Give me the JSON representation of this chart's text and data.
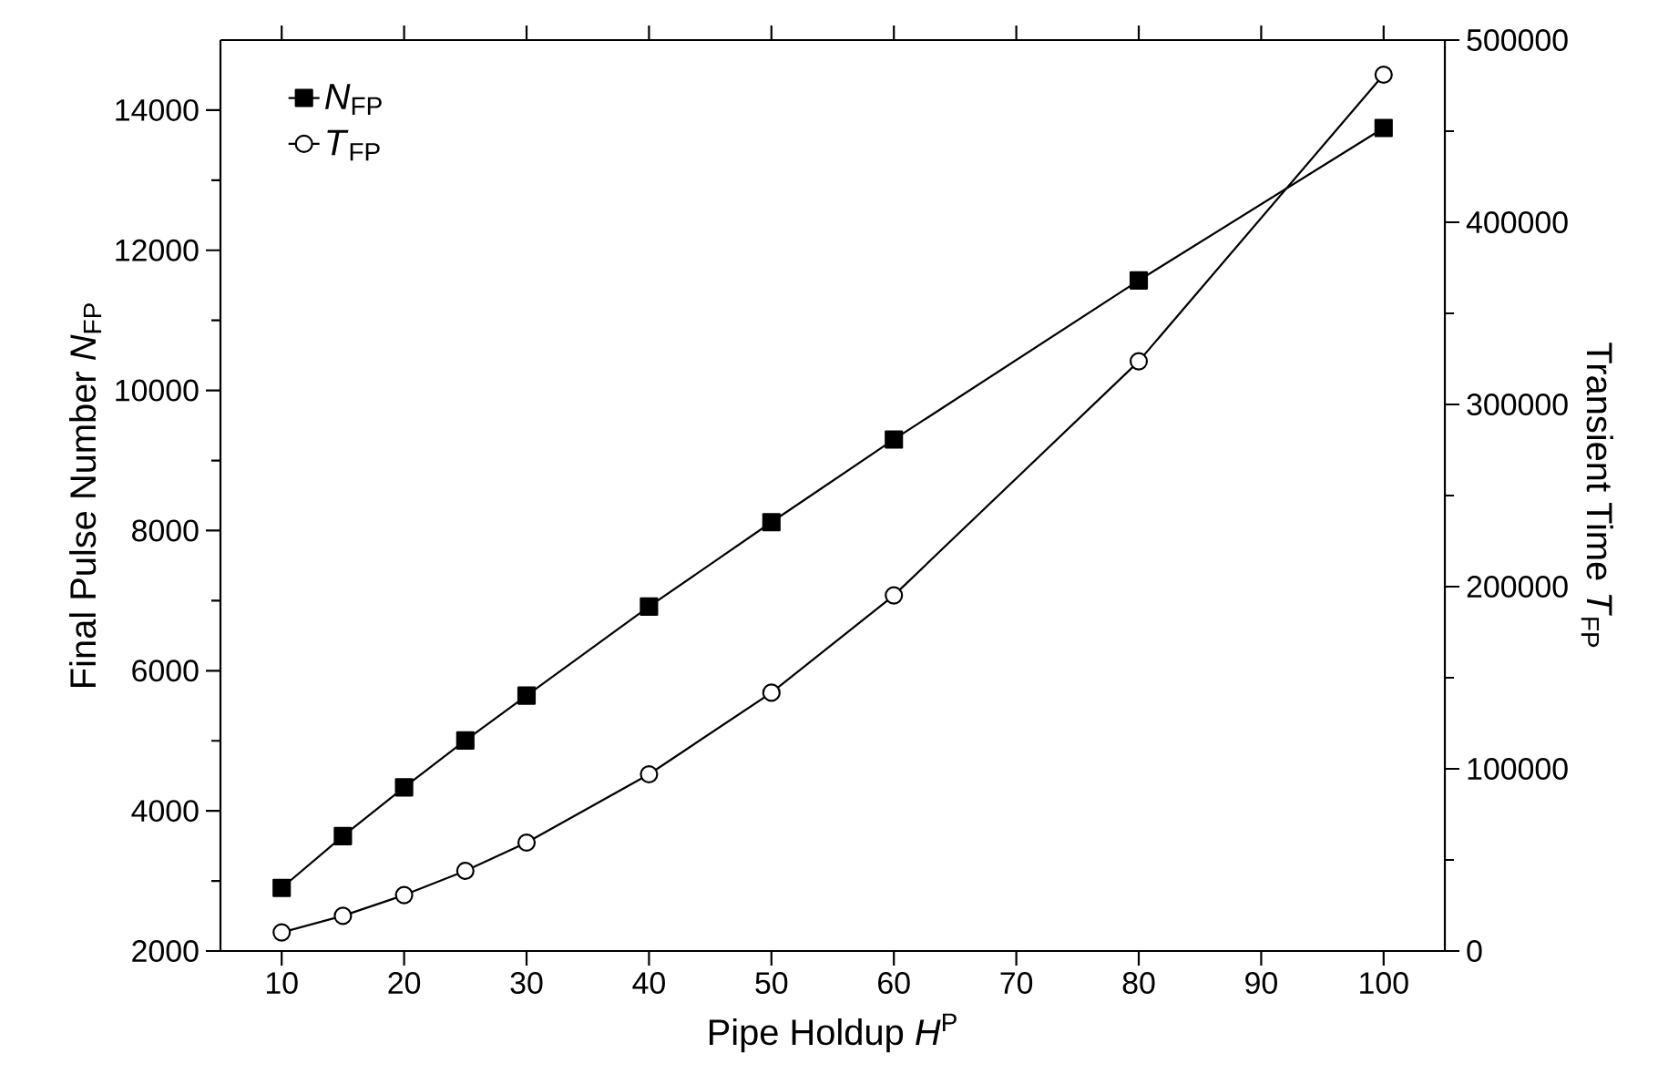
{
  "chart_data": {
    "type": "line",
    "xlabel": "Pipe Holdup *H*$^{P}$",
    "ylabel": "Final Pulse Number *N*$_{FP}$",
    "y2label": "Transient Time *T*$_{FP}$",
    "x": [
      10,
      15,
      20,
      25,
      30,
      40,
      50,
      60,
      80,
      100
    ],
    "series": [
      {
        "name": "*N*$_{FP}$",
        "color": "#000000",
        "marker": "square",
        "values": [
          2900,
          3640,
          4335,
          5005,
          5645,
          6915,
          8120,
          9300,
          11570,
          13745
        ]
      },
      {
        "name": "*T*$_{FP}$",
        "color": "#000000",
        "marker": "circle",
        "axis": "y2",
        "values": [
          10200,
          19300,
          30700,
          44000,
          59500,
          97000,
          141800,
          195200,
          323700,
          481000
        ]
      }
    ],
    "xlim": [
      5,
      105
    ],
    "xticks": [
      10,
      20,
      30,
      40,
      50,
      60,
      70,
      80,
      90,
      100
    ],
    "ylim": [
      2000,
      15000
    ],
    "yticks": [
      2000,
      4000,
      6000,
      8000,
      10000,
      12000,
      14000
    ],
    "y2lim": [
      0,
      500000
    ],
    "y2ticks": [
      0,
      100000,
      200000,
      300000,
      400000,
      500000
    ],
    "legend": "top left"
  }
}
